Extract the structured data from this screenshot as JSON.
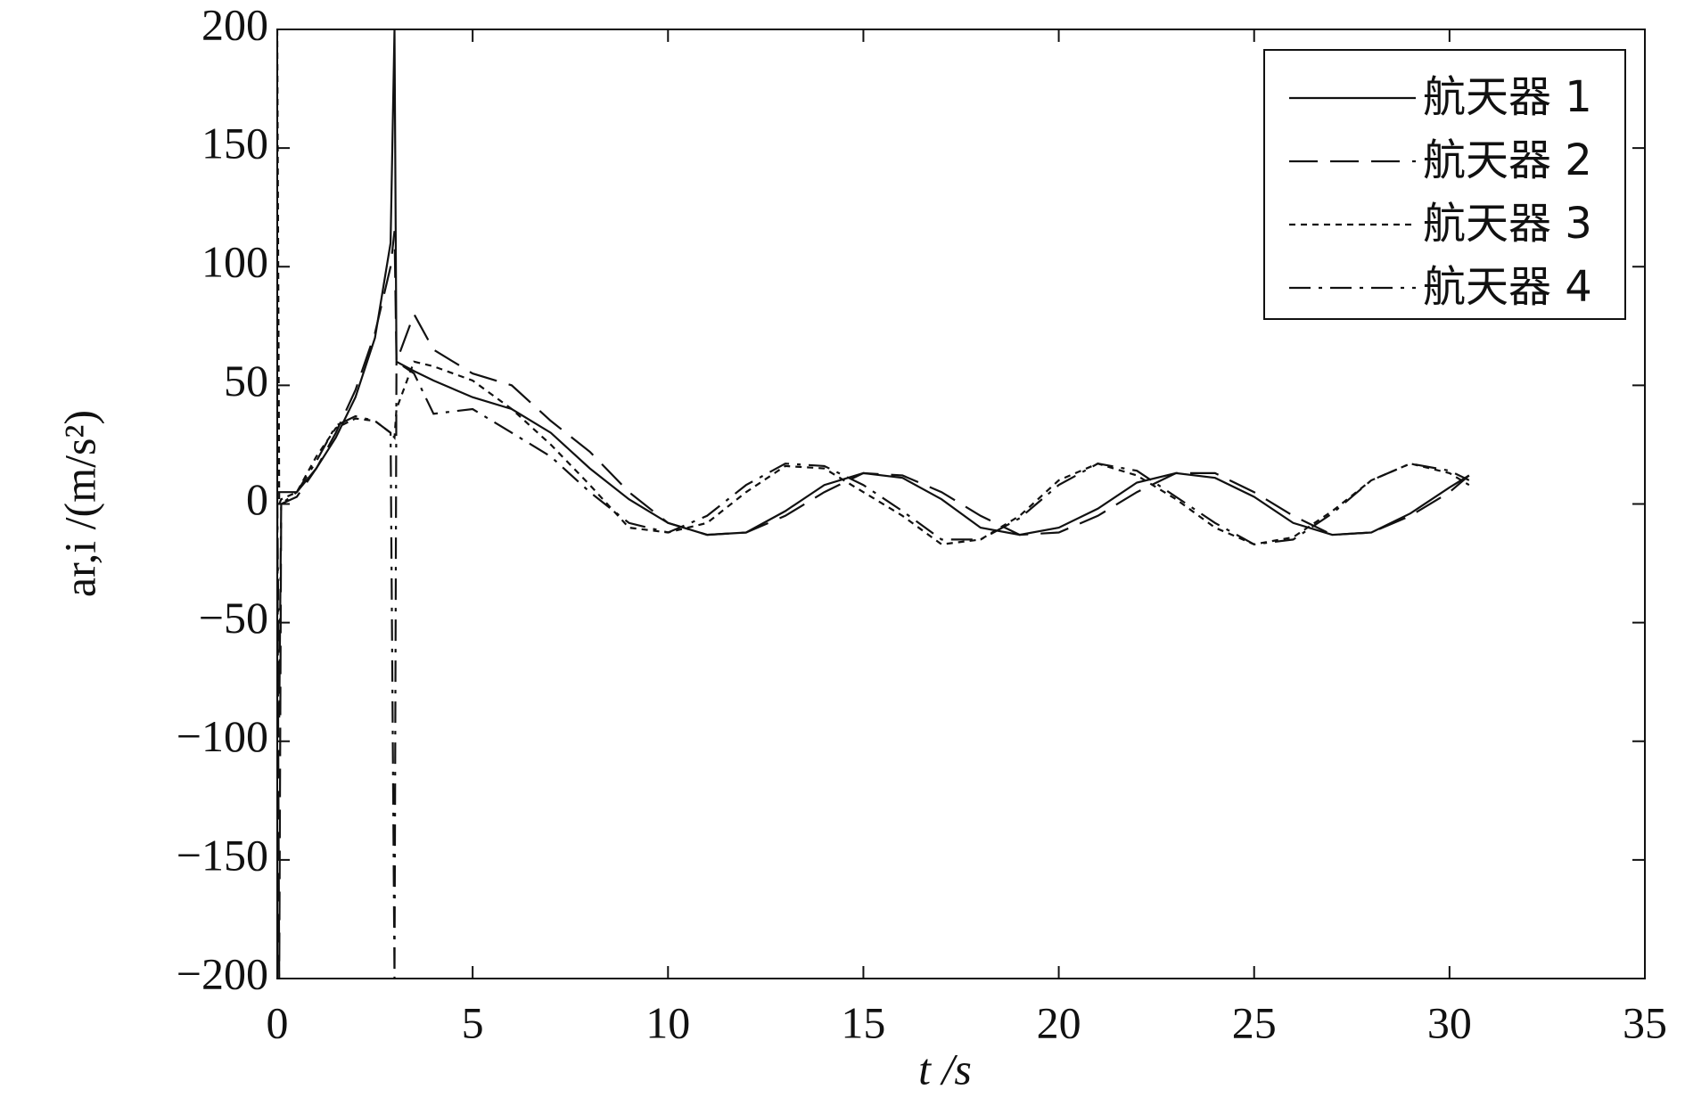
{
  "chart_data": {
    "type": "line",
    "xlabel": "t /s",
    "ylabel": "ar,i /(m/s²)",
    "x": [
      0,
      0.05,
      0.1,
      0.5,
      1,
      1.5,
      2,
      2.5,
      2.9,
      3,
      3.05,
      3.5,
      4,
      5,
      6,
      7,
      8,
      9,
      10,
      11,
      12,
      13,
      14,
      15,
      16,
      17,
      18,
      19,
      20,
      21,
      22,
      23,
      24,
      25,
      26,
      27,
      28,
      29,
      30,
      30.5
    ],
    "series": [
      {
        "name": "航天器 1",
        "color": "#111111",
        "dash": "solid",
        "values": [
          5,
          5,
          5,
          5,
          15,
          28,
          45,
          70,
          110,
          200,
          60,
          56,
          52,
          45,
          40,
          30,
          15,
          2,
          -8,
          -13,
          -12,
          -3,
          8,
          13,
          11,
          2,
          -10,
          -13,
          -10,
          -2,
          9,
          13,
          11,
          3,
          -8,
          -13,
          -12,
          -4,
          7,
          12
        ]
      },
      {
        "name": "航天器 2",
        "color": "#111111",
        "dash": "dashed",
        "values": [
          0,
          -200,
          0,
          3,
          15,
          30,
          48,
          72,
          100,
          115,
          60,
          80,
          65,
          55,
          50,
          35,
          22,
          5,
          -8,
          -13,
          -12,
          -5,
          5,
          13,
          12,
          5,
          -5,
          -13,
          -12,
          -5,
          5,
          13,
          13,
          5,
          -5,
          -13,
          -12,
          -5,
          5,
          12
        ]
      },
      {
        "name": "航天器 3",
        "color": "#111111",
        "dash": "dotted",
        "values": [
          200,
          0,
          2,
          5,
          20,
          32,
          36,
          35,
          30,
          28,
          40,
          60,
          58,
          52,
          40,
          25,
          8,
          -10,
          -12,
          -8,
          5,
          16,
          15,
          5,
          -5,
          -17,
          -15,
          -5,
          10,
          17,
          12,
          2,
          -10,
          -17,
          -14,
          -3,
          10,
          17,
          13,
          8
        ]
      },
      {
        "name": "航天器 4",
        "color": "#111111",
        "dash": "dashdot",
        "values": [
          3,
          -90,
          0,
          5,
          18,
          33,
          37,
          35,
          30,
          -200,
          60,
          55,
          38,
          40,
          30,
          20,
          5,
          -8,
          -12,
          -5,
          8,
          17,
          16,
          8,
          -3,
          -15,
          -15,
          -6,
          8,
          17,
          14,
          3,
          -8,
          -17,
          -15,
          -4,
          10,
          17,
          14,
          10
        ]
      }
    ],
    "xlim": [
      0,
      35
    ],
    "xticks": [
      0,
      5,
      10,
      15,
      20,
      25,
      30,
      35
    ],
    "ylim": [
      -200,
      200
    ],
    "yticks": [
      {
        "value": -200,
        "label": "−200"
      },
      {
        "value": -150,
        "label": "−150"
      },
      {
        "value": -100,
        "label": "−100"
      },
      {
        "value": -50,
        "label": "−50"
      },
      0,
      50,
      100,
      150,
      200
    ],
    "legend": "upper right"
  }
}
